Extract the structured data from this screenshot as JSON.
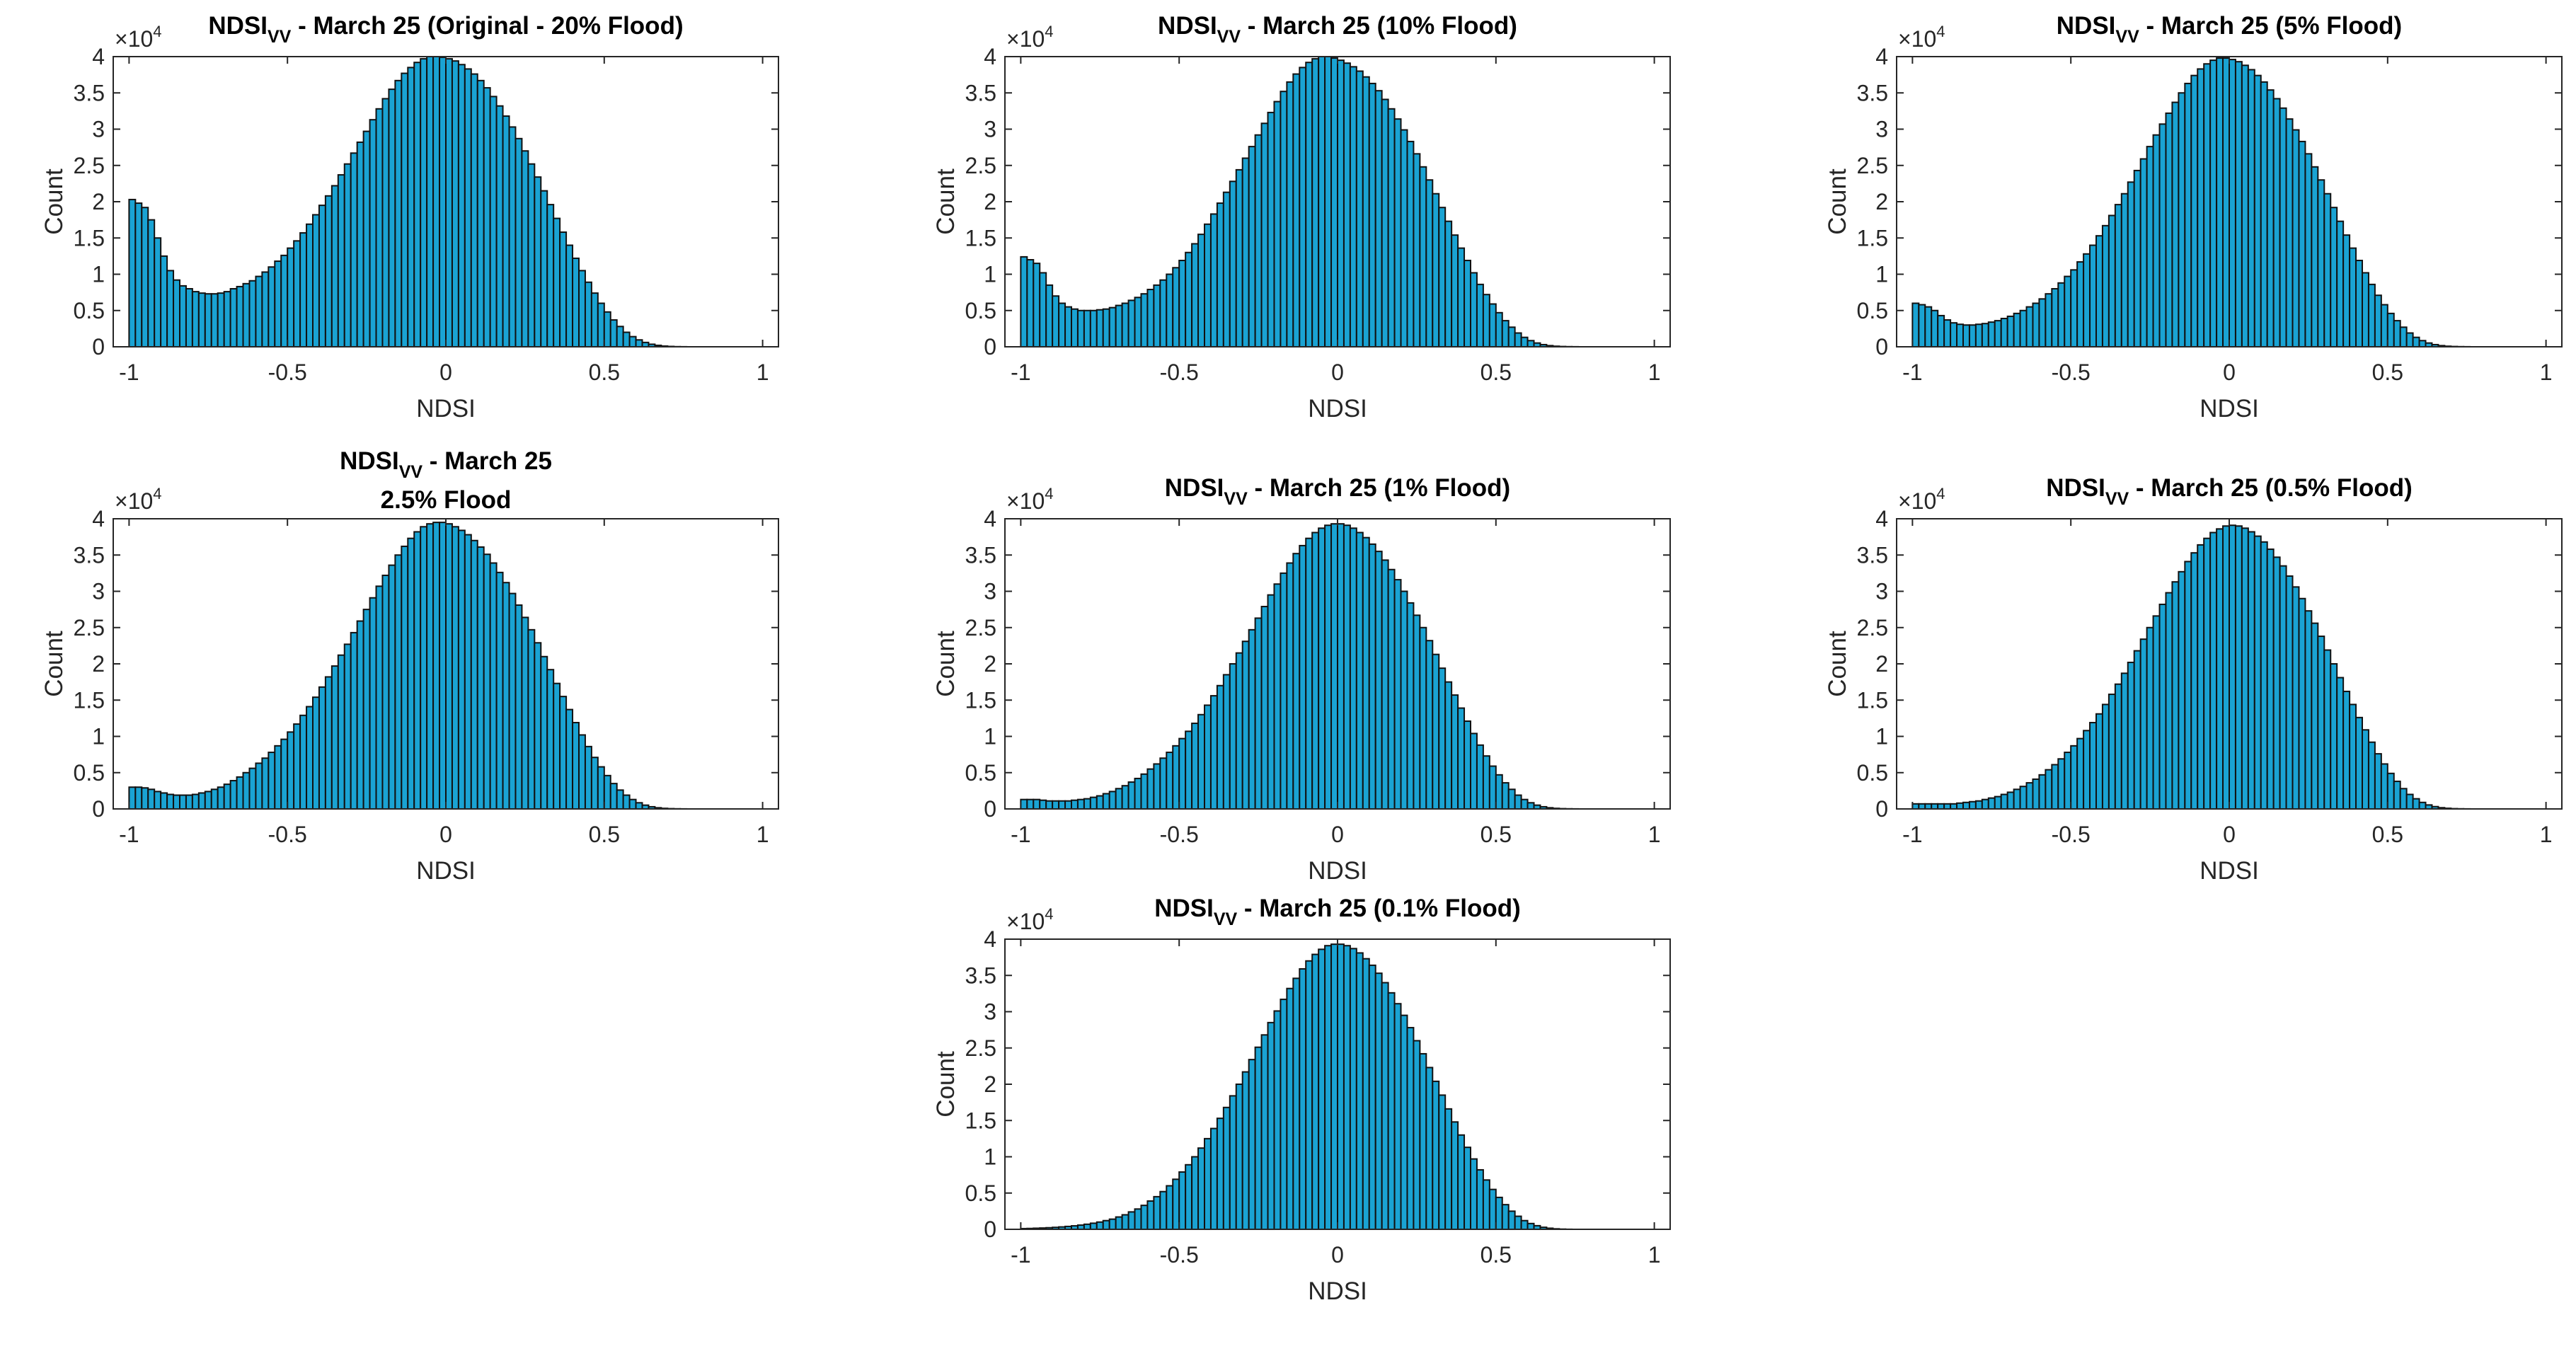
{
  "figure": {
    "bar_color": "#1aa3d3",
    "edge_color": "#111111",
    "background": "#ffffff"
  },
  "chart_data": [
    {
      "type": "bar",
      "title_main": "NDSI",
      "title_sub": "VV",
      "title_rest": " -  March 25 (Original -  20% Flood)",
      "xlabel": "NDSI",
      "ylabel": "Count",
      "exponent": "4",
      "xlim": [
        -1.05,
        1.05
      ],
      "ylim": [
        0,
        40000
      ],
      "xticks": [
        -1,
        -0.5,
        0,
        0.5,
        1
      ],
      "xtick_labels": [
        "-1",
        "-0.5",
        "0",
        "0.5",
        "1"
      ],
      "yticks": [
        0,
        5000,
        10000,
        15000,
        20000,
        25000,
        30000,
        35000,
        40000
      ],
      "ytick_labels": [
        "0",
        "0.5",
        "1",
        "1.5",
        "2",
        "2.5",
        "3",
        "3.5",
        "4"
      ],
      "bins": {
        "start": -1,
        "width": 0.02,
        "count": 100
      },
      "counts": [
        20300,
        19800,
        19200,
        17500,
        15000,
        12500,
        10500,
        9200,
        8400,
        8000,
        7600,
        7400,
        7300,
        7300,
        7400,
        7600,
        8000,
        8300,
        8700,
        9100,
        9700,
        10300,
        11000,
        11800,
        12600,
        13600,
        14600,
        15700,
        16900,
        18200,
        19500,
        20800,
        22200,
        23700,
        25200,
        26700,
        28200,
        29700,
        31300,
        32800,
        34200,
        35500,
        36700,
        37700,
        38500,
        39200,
        39700,
        40000,
        40000,
        39900,
        39700,
        39400,
        38900,
        38300,
        37600,
        36700,
        35700,
        34500,
        33200,
        31800,
        30300,
        28700,
        27000,
        25200,
        23400,
        21500,
        19600,
        17700,
        15800,
        14000,
        12200,
        10500,
        8900,
        7400,
        6000,
        4800,
        3700,
        2800,
        2000,
        1400,
        950,
        600,
        350,
        200,
        100,
        50,
        20,
        10,
        0,
        0,
        0,
        0,
        0,
        0,
        0,
        0,
        0,
        0,
        0,
        0
      ]
    },
    {
      "type": "bar",
      "title_main": "NDSI",
      "title_sub": "VV",
      "title_rest": " -  March 25 (10% Flood)",
      "xlabel": "NDSI",
      "ylabel": "Count",
      "exponent": "4",
      "xlim": [
        -1.05,
        1.05
      ],
      "ylim": [
        0,
        40000
      ],
      "xticks": [
        -1,
        -0.5,
        0,
        0.5,
        1
      ],
      "xtick_labels": [
        "-1",
        "-0.5",
        "0",
        "0.5",
        "1"
      ],
      "yticks": [
        0,
        5000,
        10000,
        15000,
        20000,
        25000,
        30000,
        35000,
        40000
      ],
      "ytick_labels": [
        "0",
        "0.5",
        "1",
        "1.5",
        "2",
        "2.5",
        "3",
        "3.5",
        "4"
      ],
      "bins": {
        "start": -1,
        "width": 0.02,
        "count": 100
      },
      "counts": [
        12400,
        12000,
        11500,
        10200,
        8500,
        7000,
        6000,
        5500,
        5200,
        5000,
        5000,
        5000,
        5100,
        5200,
        5400,
        5700,
        6000,
        6400,
        6800,
        7300,
        7900,
        8500,
        9200,
        10000,
        10900,
        11900,
        13000,
        14200,
        15500,
        16900,
        18300,
        19800,
        21300,
        22800,
        24400,
        26000,
        27600,
        29200,
        30800,
        32300,
        33800,
        35200,
        36500,
        37600,
        38500,
        39200,
        39700,
        40000,
        40000,
        39800,
        39500,
        39100,
        38600,
        38000,
        37200,
        36300,
        35300,
        34100,
        32800,
        31400,
        29900,
        28300,
        26600,
        24800,
        23000,
        21100,
        19200,
        17300,
        15400,
        13600,
        11900,
        10200,
        8600,
        7200,
        5900,
        4700,
        3600,
        2700,
        1900,
        1300,
        850,
        520,
        300,
        160,
        80,
        40,
        20,
        10,
        0,
        0,
        0,
        0,
        0,
        0,
        0,
        0,
        0,
        0,
        0,
        0
      ]
    },
    {
      "type": "bar",
      "title_main": "NDSI",
      "title_sub": "VV",
      "title_rest": " -  March 25 (5% Flood)",
      "xlabel": "NDSI",
      "ylabel": "Count",
      "exponent": "4",
      "xlim": [
        -1.05,
        1.05
      ],
      "ylim": [
        0,
        40000
      ],
      "xticks": [
        -1,
        -0.5,
        0,
        0.5,
        1
      ],
      "xtick_labels": [
        "-1",
        "-0.5",
        "0",
        "0.5",
        "1"
      ],
      "yticks": [
        0,
        5000,
        10000,
        15000,
        20000,
        25000,
        30000,
        35000,
        40000
      ],
      "ytick_labels": [
        "0",
        "0.5",
        "1",
        "1.5",
        "2",
        "2.5",
        "3",
        "3.5",
        "4"
      ],
      "bins": {
        "start": -1,
        "width": 0.02,
        "count": 100
      },
      "counts": [
        6000,
        5800,
        5500,
        5000,
        4300,
        3700,
        3300,
        3100,
        3000,
        3000,
        3100,
        3200,
        3400,
        3600,
        3900,
        4200,
        4600,
        5000,
        5500,
        6000,
        6600,
        7300,
        8000,
        8800,
        9700,
        10600,
        11700,
        12800,
        14000,
        15300,
        16700,
        18100,
        19600,
        21100,
        22700,
        24300,
        25900,
        27600,
        29200,
        30700,
        32200,
        33700,
        35000,
        36300,
        37400,
        38300,
        39000,
        39500,
        39800,
        39800,
        39600,
        39300,
        38800,
        38200,
        37400,
        36500,
        35400,
        34200,
        32900,
        31400,
        29900,
        28300,
        26600,
        24800,
        23000,
        21100,
        19200,
        17300,
        15400,
        13600,
        11900,
        10200,
        8600,
        7100,
        5800,
        4600,
        3600,
        2700,
        1900,
        1300,
        850,
        520,
        300,
        160,
        80,
        40,
        20,
        10,
        0,
        0,
        0,
        0,
        0,
        0,
        0,
        0,
        0,
        0,
        0,
        0
      ]
    },
    {
      "type": "bar",
      "title_main": "NDSI",
      "title_sub": "VV",
      "title_rest": " -  March 25",
      "title_line2": "2.5% Flood",
      "xlabel": "NDSI",
      "ylabel": "Count",
      "exponent": "4",
      "xlim": [
        -1.05,
        1.05
      ],
      "ylim": [
        0,
        40000
      ],
      "xticks": [
        -1,
        -0.5,
        0,
        0.5,
        1
      ],
      "xtick_labels": [
        "-1",
        "-0.5",
        "0",
        "0.5",
        "1"
      ],
      "yticks": [
        0,
        5000,
        10000,
        15000,
        20000,
        25000,
        30000,
        35000,
        40000
      ],
      "ytick_labels": [
        "0",
        "0.5",
        "1",
        "1.5",
        "2",
        "2.5",
        "3",
        "3.5",
        "4"
      ],
      "bins": {
        "start": -1,
        "width": 0.02,
        "count": 100
      },
      "counts": [
        3000,
        3000,
        2900,
        2700,
        2400,
        2200,
        2000,
        1900,
        1900,
        1900,
        2000,
        2200,
        2400,
        2700,
        3000,
        3400,
        3900,
        4400,
        5000,
        5600,
        6300,
        7000,
        7800,
        8700,
        9600,
        10600,
        11700,
        12900,
        14100,
        15400,
        16800,
        18200,
        19700,
        21200,
        22700,
        24300,
        25900,
        27500,
        29100,
        30700,
        32200,
        33600,
        35000,
        36200,
        37300,
        38200,
        38900,
        39300,
        39500,
        39500,
        39300,
        38900,
        38400,
        37800,
        37000,
        36100,
        35100,
        33900,
        32600,
        31200,
        29700,
        28100,
        26400,
        24700,
        22900,
        21000,
        19200,
        17300,
        15500,
        13700,
        11900,
        10200,
        8600,
        7100,
        5800,
        4600,
        3500,
        2600,
        1900,
        1300,
        850,
        520,
        300,
        160,
        80,
        40,
        20,
        10,
        0,
        0,
        0,
        0,
        0,
        0,
        0,
        0,
        0,
        0,
        0,
        0
      ]
    },
    {
      "type": "bar",
      "title_main": "NDSI",
      "title_sub": "VV",
      "title_rest": " -  March 25 (1% Flood)",
      "xlabel": "NDSI",
      "ylabel": "Count",
      "exponent": "4",
      "xlim": [
        -1.05,
        1.05
      ],
      "ylim": [
        0,
        40000
      ],
      "xticks": [
        -1,
        -0.5,
        0,
        0.5,
        1
      ],
      "xtick_labels": [
        "-1",
        "-0.5",
        "0",
        "0.5",
        "1"
      ],
      "yticks": [
        0,
        5000,
        10000,
        15000,
        20000,
        25000,
        30000,
        35000,
        40000
      ],
      "ytick_labels": [
        "0",
        "0.5",
        "1",
        "1.5",
        "2",
        "2.5",
        "3",
        "3.5",
        "4"
      ],
      "bins": {
        "start": -1,
        "width": 0.02,
        "count": 100
      },
      "counts": [
        1300,
        1300,
        1300,
        1200,
        1100,
        1100,
        1100,
        1100,
        1200,
        1300,
        1400,
        1600,
        1800,
        2100,
        2400,
        2800,
        3200,
        3700,
        4200,
        4800,
        5500,
        6200,
        7000,
        7800,
        8700,
        9700,
        10700,
        11800,
        13000,
        14300,
        15600,
        17000,
        18500,
        20000,
        21500,
        23100,
        24700,
        26300,
        27900,
        29500,
        31000,
        32500,
        33900,
        35200,
        36300,
        37300,
        38100,
        38700,
        39100,
        39300,
        39300,
        39100,
        38700,
        38100,
        37400,
        36500,
        35500,
        34300,
        33000,
        31600,
        30000,
        28400,
        26700,
        25000,
        23200,
        21300,
        19400,
        17500,
        15700,
        13900,
        12100,
        10400,
        8800,
        7300,
        5900,
        4700,
        3600,
        2700,
        1900,
        1300,
        850,
        520,
        300,
        160,
        80,
        40,
        20,
        10,
        0,
        0,
        0,
        0,
        0,
        0,
        0,
        0,
        0,
        0,
        0,
        0
      ]
    },
    {
      "type": "bar",
      "title_main": "NDSI",
      "title_sub": "VV",
      "title_rest": " -  March 25 (0.5% Flood)",
      "xlabel": "NDSI",
      "ylabel": "Count",
      "exponent": "4",
      "xlim": [
        -1.05,
        1.05
      ],
      "ylim": [
        0,
        40000
      ],
      "xticks": [
        -1,
        -0.5,
        0,
        0.5,
        1
      ],
      "xtick_labels": [
        "-1",
        "-0.5",
        "0",
        "0.5",
        "1"
      ],
      "yticks": [
        0,
        5000,
        10000,
        15000,
        20000,
        25000,
        30000,
        35000,
        40000
      ],
      "ytick_labels": [
        "0",
        "0.5",
        "1",
        "1.5",
        "2",
        "2.5",
        "3",
        "3.5",
        "4"
      ],
      "bins": {
        "start": -1,
        "width": 0.02,
        "count": 100
      },
      "counts": [
        700,
        700,
        700,
        700,
        700,
        700,
        700,
        800,
        900,
        1000,
        1100,
        1300,
        1500,
        1700,
        2000,
        2300,
        2700,
        3100,
        3600,
        4100,
        4700,
        5400,
        6100,
        6900,
        7800,
        8700,
        9700,
        10800,
        11900,
        13100,
        14400,
        15800,
        17200,
        18700,
        20200,
        21800,
        23400,
        25000,
        26600,
        28200,
        29800,
        31300,
        32700,
        34100,
        35300,
        36400,
        37300,
        38100,
        38600,
        39000,
        39100,
        39000,
        38700,
        38200,
        37600,
        36800,
        35800,
        34700,
        33500,
        32100,
        30600,
        29000,
        27300,
        25600,
        23800,
        21900,
        20000,
        18100,
        16200,
        14400,
        12600,
        10900,
        9200,
        7600,
        6200,
        4900,
        3800,
        2800,
        2000,
        1400,
        900,
        550,
        320,
        170,
        90,
        40,
        20,
        10,
        0,
        0,
        0,
        0,
        0,
        0,
        0,
        0,
        0,
        0,
        0,
        0
      ]
    },
    {
      "type": "bar",
      "title_main": "NDSI",
      "title_sub": "VV",
      "title_rest": " -  March 25 (0.1% Flood)",
      "xlabel": "NDSI",
      "ylabel": "Count",
      "exponent": "4",
      "xlim": [
        -1.05,
        1.05
      ],
      "ylim": [
        0,
        40000
      ],
      "xticks": [
        -1,
        -0.5,
        0,
        0.5,
        1
      ],
      "xtick_labels": [
        "-1",
        "-0.5",
        "0",
        "0.5",
        "1"
      ],
      "yticks": [
        0,
        5000,
        10000,
        15000,
        20000,
        25000,
        30000,
        35000,
        40000
      ],
      "ytick_labels": [
        "0",
        "0.5",
        "1",
        "1.5",
        "2",
        "2.5",
        "3",
        "3.5",
        "4"
      ],
      "bins": {
        "start": -1,
        "width": 0.02,
        "count": 100
      },
      "counts": [
        100,
        120,
        150,
        180,
        220,
        270,
        330,
        400,
        480,
        580,
        700,
        840,
        1000,
        1200,
        1400,
        1700,
        2000,
        2400,
        2800,
        3300,
        3900,
        4500,
        5200,
        6000,
        6900,
        7900,
        8900,
        10000,
        11200,
        12500,
        13900,
        15300,
        16800,
        18400,
        20000,
        21700,
        23400,
        25100,
        26800,
        28500,
        30100,
        31700,
        33200,
        34600,
        35900,
        37000,
        37900,
        38600,
        39100,
        39300,
        39300,
        39100,
        38700,
        38100,
        37300,
        36400,
        35300,
        34000,
        32600,
        31100,
        29500,
        27800,
        26000,
        24200,
        22300,
        20400,
        18500,
        16600,
        14800,
        13000,
        11300,
        9700,
        8200,
        6800,
        5500,
        4400,
        3400,
        2500,
        1800,
        1200,
        800,
        500,
        280,
        150,
        70,
        30,
        10,
        0,
        0,
        0,
        0,
        0,
        0,
        0,
        0,
        0,
        0,
        0,
        0,
        0
      ]
    }
  ]
}
